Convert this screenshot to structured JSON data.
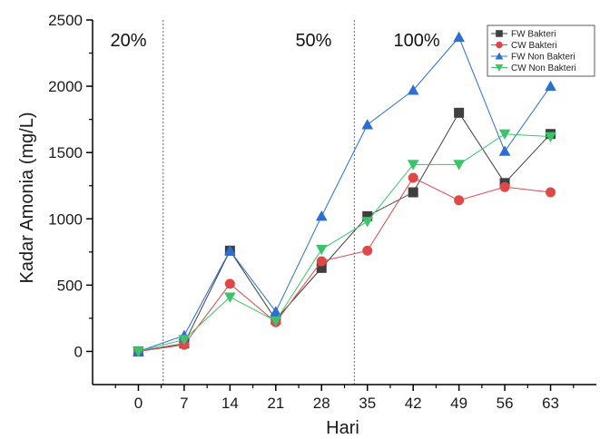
{
  "chart_data": {
    "type": "line",
    "xlabel": "Hari",
    "ylabel": "Kadar Amonia (mg/L)",
    "x": [
      0,
      7,
      14,
      21,
      28,
      35,
      42,
      49,
      56,
      63
    ],
    "xlim": [
      -7,
      70
    ],
    "ylim": [
      -250,
      2500
    ],
    "yticks": [
      0,
      500,
      1000,
      1500,
      2000,
      2500
    ],
    "phase_dividers": [
      3.8,
      33
    ],
    "phase_labels": [
      {
        "text": "20%",
        "x": -4.3,
        "y": 2300
      },
      {
        "text": "50%",
        "x": 24,
        "y": 2300
      },
      {
        "text": "100%",
        "x": 39,
        "y": 2300
      }
    ],
    "legend_position": "top-right",
    "series": [
      {
        "name": "FW Bakteri",
        "marker": "square",
        "color": "#3f3f3f",
        "values": [
          0,
          60,
          760,
          240,
          630,
          1020,
          1200,
          1800,
          1270,
          1640
        ]
      },
      {
        "name": "CW Bakteri",
        "marker": "circle",
        "color": "#e04848",
        "values": [
          0,
          50,
          510,
          220,
          680,
          760,
          1310,
          1140,
          1240,
          1200
        ]
      },
      {
        "name": "FW Non Bakteri",
        "marker": "triangle-up",
        "color": "#2a6fd1",
        "values": [
          0,
          120,
          760,
          300,
          1020,
          1710,
          1970,
          2370,
          1510,
          2000
        ]
      },
      {
        "name": "CW Non Bakteri",
        "marker": "triangle-down",
        "color": "#3cc46a",
        "values": [
          0,
          90,
          410,
          230,
          770,
          980,
          1410,
          1410,
          1640,
          1620
        ]
      }
    ]
  }
}
